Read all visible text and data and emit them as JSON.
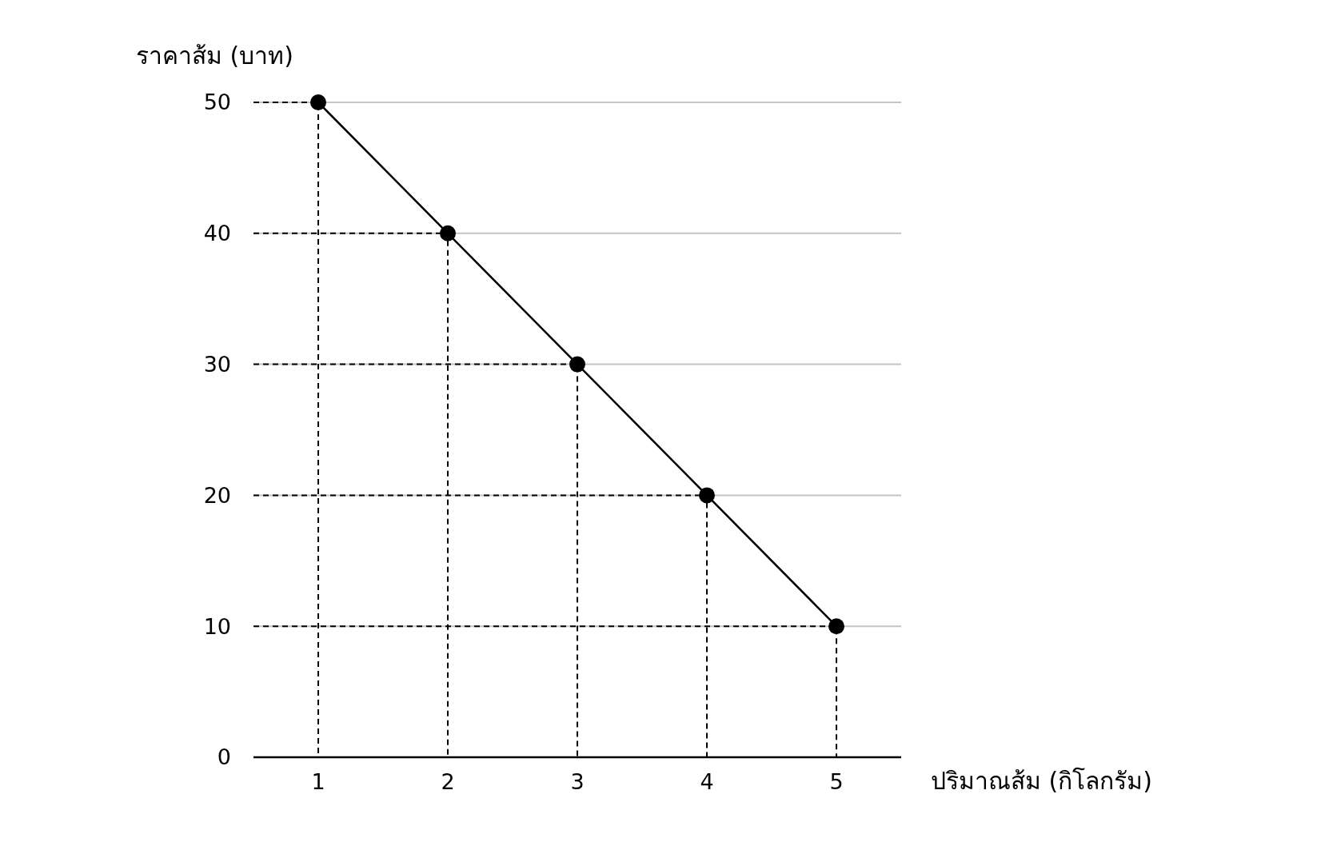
{
  "chart_data": {
    "type": "line",
    "xlabel": "ปริมาณส้ม (กิโลกรัม)",
    "ylabel": "ราคาส้ม (บาท)",
    "x": [
      1,
      2,
      3,
      4,
      5
    ],
    "series": [
      {
        "color": "#000000",
        "values": [
          50,
          40,
          30,
          20,
          10
        ],
        "marker": "circle",
        "line_style": "solid"
      },
      {
        "color": "#000000",
        "x": [
          0.5,
          1,
          1
        ],
        "values": [
          50,
          50,
          0
        ],
        "line_style": "dashed",
        "marker": "none"
      },
      {
        "color": "#000000",
        "x": [
          0.5,
          2,
          2
        ],
        "values": [
          40,
          40,
          0
        ],
        "line_style": "dashed",
        "marker": "none"
      },
      {
        "color": "#000000",
        "x": [
          0.5,
          3,
          3
        ],
        "values": [
          30,
          30,
          0
        ],
        "line_style": "dashed",
        "marker": "none"
      },
      {
        "color": "#000000",
        "x": [
          0.5,
          4,
          4
        ],
        "values": [
          20,
          20,
          0
        ],
        "line_style": "dashed",
        "marker": "none"
      },
      {
        "color": "#000000",
        "x": [
          0.5,
          5,
          5
        ],
        "values": [
          10,
          10,
          0
        ],
        "line_style": "dashed",
        "marker": "none"
      }
    ],
    "xlim": [
      0.5,
      5.5
    ],
    "ylim": [
      0,
      50
    ],
    "xticks": [
      1,
      2,
      3,
      4,
      5
    ],
    "yticks": [
      0,
      10,
      20,
      30,
      40,
      50
    ],
    "grid": "y"
  }
}
